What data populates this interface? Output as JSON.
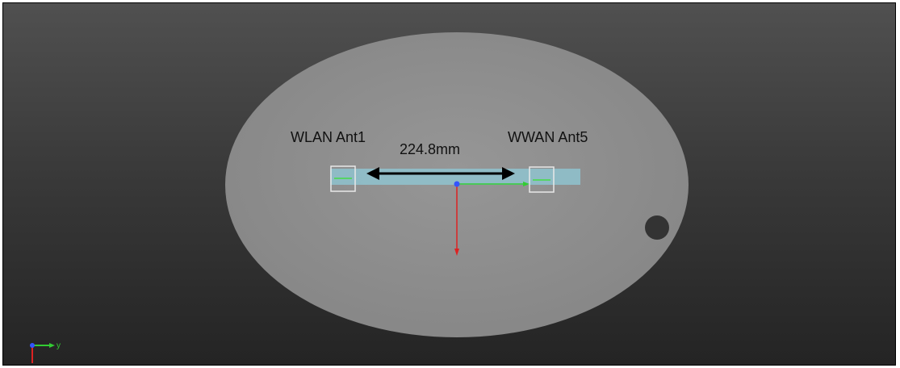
{
  "labels": {
    "left_antenna": "WLAN Ant1",
    "right_antenna": "WWAN Ant5",
    "distance": "224.8mm"
  },
  "triad": {
    "y_axis_label": "y"
  },
  "colors": {
    "background_top": "#505050",
    "background_bottom": "#242424",
    "disc": "#8c8c8c",
    "antenna_strip": "#8fc3cf",
    "x_axis": "#dd2222",
    "y_axis": "#33cc33",
    "z_axis": "#3355ff",
    "dimension_arrow": "#000000"
  }
}
